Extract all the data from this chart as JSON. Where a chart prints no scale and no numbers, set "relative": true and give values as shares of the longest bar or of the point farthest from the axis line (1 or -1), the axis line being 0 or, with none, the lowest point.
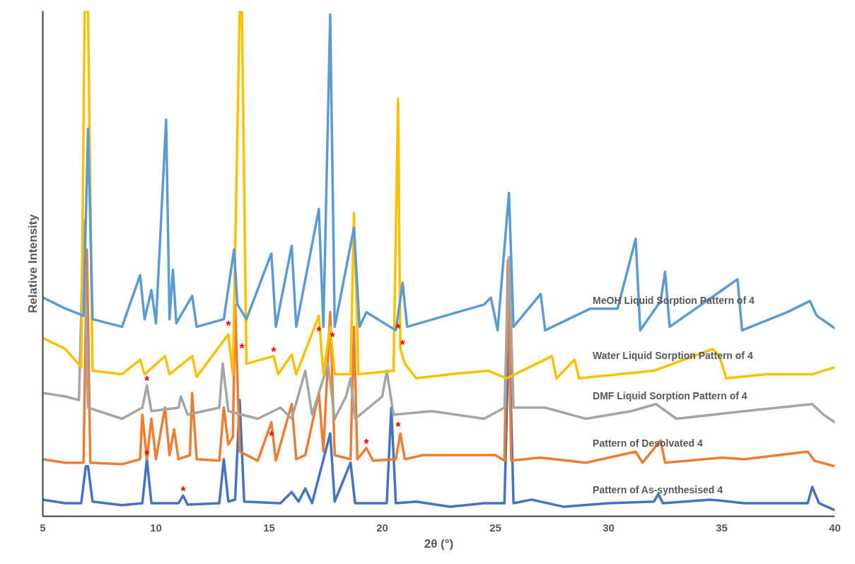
{
  "chart_data": {
    "type": "line",
    "relative": true,
    "xlabel": "2θ (°)",
    "ylabel": "Relative Intensity",
    "xlim": [
      5,
      40
    ],
    "xticks": [
      5,
      10,
      15,
      20,
      25,
      30,
      35,
      40
    ],
    "grid": false,
    "marker": "none",
    "line_style": "solid",
    "series": [
      {
        "name": "Pattern of As-synthesised 4",
        "color": "#4472c4",
        "x": [
          5.0,
          6.0,
          6.7,
          6.9,
          7.0,
          7.2,
          8.5,
          9.4,
          9.6,
          9.8,
          11.0,
          11.2,
          11.4,
          12.8,
          13.0,
          13.2,
          13.5,
          13.7,
          13.9,
          15.5,
          16.0,
          16.3,
          16.6,
          16.9,
          17.7,
          17.9,
          18.6,
          18.8,
          20.2,
          20.4,
          20.6,
          21.5,
          23,
          24.5,
          25.4,
          25.6,
          25.8,
          26.6,
          28,
          30,
          32.0,
          32.2,
          32.4,
          34.5,
          36,
          38.8,
          39.0,
          39.3,
          40
        ],
        "values": [
          0.033,
          0.026,
          0.026,
          0.099,
          0.099,
          0.029,
          0.022,
          0.026,
          0.113,
          0.026,
          0.026,
          0.041,
          0.023,
          0.026,
          0.113,
          0.029,
          0.033,
          0.23,
          0.029,
          0.026,
          0.048,
          0.029,
          0.055,
          0.026,
          0.164,
          0.029,
          0.106,
          0.026,
          0.026,
          0.215,
          0.026,
          0.029,
          0.019,
          0.026,
          0.026,
          0.375,
          0.026,
          0.033,
          0.019,
          0.026,
          0.029,
          0.044,
          0.026,
          0.033,
          0.026,
          0.026,
          0.058,
          0.026,
          0.012
        ]
      },
      {
        "name": "Pattern of Desolvated 4",
        "color": "#ed7d31",
        "x": [
          5.0,
          6.0,
          6.8,
          6.95,
          7.1,
          8.5,
          9.3,
          9.4,
          9.6,
          9.8,
          10.0,
          10.4,
          10.6,
          10.8,
          11.0,
          11.5,
          11.6,
          11.8,
          12.8,
          13.0,
          13.2,
          13.4,
          13.5,
          13.7,
          14.5,
          15.1,
          15.3,
          16.0,
          16.2,
          16.6,
          17.2,
          17.4,
          17.7,
          17.9,
          18.6,
          18.75,
          18.9,
          19.3,
          19.6,
          20.6,
          20.8,
          21.0,
          21.8,
          22.8,
          24.3,
          25.0,
          25.4,
          25.55,
          25.7,
          27.0,
          29.0,
          31.2,
          31.5,
          32.3,
          32.5,
          35,
          36,
          38.8,
          39.1,
          40
        ],
        "values": [
          0.113,
          0.106,
          0.106,
          0.528,
          0.106,
          0.103,
          0.113,
          0.201,
          0.113,
          0.193,
          0.113,
          0.215,
          0.121,
          0.172,
          0.113,
          0.121,
          0.244,
          0.113,
          0.11,
          0.215,
          0.142,
          0.157,
          0.419,
          0.128,
          0.11,
          0.186,
          0.11,
          0.222,
          0.113,
          0.121,
          0.244,
          0.128,
          0.404,
          0.121,
          0.113,
          0.375,
          0.113,
          0.135,
          0.11,
          0.113,
          0.164,
          0.113,
          0.121,
          0.121,
          0.121,
          0.121,
          0.11,
          0.506,
          0.11,
          0.116,
          0.106,
          0.128,
          0.106,
          0.15,
          0.106,
          0.116,
          0.113,
          0.128,
          0.11,
          0.099
        ]
      },
      {
        "name": "DMF Liquid Sorption Pattern of 4",
        "color": "#a5a5a5",
        "x": [
          5.0,
          6.0,
          6.6,
          6.8,
          7.0,
          8.5,
          9.4,
          9.6,
          9.8,
          11.0,
          11.1,
          11.4,
          12.8,
          12.95,
          13.2,
          14.5,
          15.5,
          16.0,
          16.6,
          16.9,
          17.6,
          17.9,
          18.4,
          18.6,
          18.8,
          20.0,
          20.2,
          20.5,
          22.2,
          24.5,
          25.4,
          25.6,
          25.8,
          27.2,
          29,
          31,
          32.1,
          33,
          36,
          39,
          39.5,
          40
        ],
        "values": [
          0.244,
          0.237,
          0.23,
          0.586,
          0.215,
          0.193,
          0.215,
          0.259,
          0.208,
          0.215,
          0.237,
          0.201,
          0.215,
          0.302,
          0.208,
          0.193,
          0.215,
          0.193,
          0.288,
          0.201,
          0.302,
          0.193,
          0.237,
          0.273,
          0.193,
          0.237,
          0.288,
          0.201,
          0.208,
          0.193,
          0.215,
          0.513,
          0.215,
          0.215,
          0.193,
          0.208,
          0.222,
          0.193,
          0.208,
          0.222,
          0.201,
          0.186
        ]
      },
      {
        "name": "Water Liquid Sorption Pattern of 4",
        "color": "#ffc000",
        "x": [
          5.0,
          6.0,
          6.7,
          6.85,
          7.0,
          7.2,
          8.5,
          9.3,
          9.5,
          10.4,
          10.6,
          11.6,
          11.8,
          13.2,
          13.4,
          13.7,
          13.8,
          14.0,
          15.2,
          15.4,
          16.0,
          16.2,
          17.2,
          17.4,
          17.7,
          17.9,
          18.6,
          18.75,
          18.95,
          20.5,
          20.7,
          20.8,
          21.0,
          21.5,
          23,
          24.7,
          25.5,
          27.5,
          27.7,
          28.5,
          28.7,
          32,
          34.6,
          34.9,
          35.2,
          37,
          39,
          40
        ],
        "values": [
          0.353,
          0.331,
          0.295,
          1.0,
          1.0,
          0.288,
          0.281,
          0.31,
          0.281,
          0.317,
          0.281,
          0.317,
          0.276,
          0.36,
          0.281,
          1.0,
          1.0,
          0.302,
          0.317,
          0.281,
          0.32,
          0.281,
          0.397,
          0.281,
          0.375,
          0.281,
          0.281,
          0.6,
          0.281,
          0.288,
          0.826,
          0.331,
          0.302,
          0.273,
          0.281,
          0.288,
          0.273,
          0.317,
          0.273,
          0.31,
          0.273,
          0.288,
          0.331,
          0.317,
          0.273,
          0.281,
          0.281,
          0.295
        ]
      },
      {
        "name": "MeOH Liquid Sorption Pattern of 4",
        "color": "#5b9bd5",
        "x": [
          5.0,
          6.0,
          6.8,
          7.0,
          7.2,
          8.5,
          9.3,
          9.5,
          9.8,
          10.0,
          10.45,
          10.6,
          10.75,
          10.9,
          11.6,
          11.8,
          13.0,
          13.45,
          13.6,
          14.0,
          15.1,
          15.3,
          16.0,
          16.2,
          17.2,
          17.4,
          17.7,
          17.9,
          18.75,
          19.0,
          19.3,
          20.6,
          20.9,
          21.1,
          22.8,
          24.5,
          24.8,
          25.1,
          25.6,
          25.8,
          27.0,
          27.2,
          29.2,
          30.4,
          31.2,
          31.4,
          32.3,
          32.5,
          32.7,
          35.7,
          35.9,
          37.9,
          38.9,
          39.2,
          40
        ],
        "values": [
          0.433,
          0.411,
          0.397,
          0.767,
          0.39,
          0.375,
          0.477,
          0.39,
          0.448,
          0.382,
          0.785,
          0.39,
          0.488,
          0.382,
          0.436,
          0.375,
          0.39,
          0.528,
          0.419,
          0.39,
          0.52,
          0.375,
          0.535,
          0.375,
          0.608,
          0.375,
          0.993,
          0.375,
          0.571,
          0.375,
          0.404,
          0.368,
          0.462,
          0.375,
          0.397,
          0.419,
          0.433,
          0.368,
          0.64,
          0.375,
          0.44,
          0.368,
          0.411,
          0.411,
          0.549,
          0.368,
          0.426,
          0.484,
          0.375,
          0.469,
          0.368,
          0.404,
          0.426,
          0.397,
          0.372
        ]
      }
    ],
    "annotations": [
      {
        "text": "*",
        "x": 9.6,
        "y": 0.259
      },
      {
        "text": "*",
        "x": 13.2,
        "y": 0.368
      },
      {
        "text": "*",
        "x": 13.8,
        "y": 0.324
      },
      {
        "text": "*",
        "x": 15.2,
        "y": 0.317
      },
      {
        "text": "*",
        "x": 17.2,
        "y": 0.358
      },
      {
        "text": "*",
        "x": 17.8,
        "y": 0.346
      },
      {
        "text": "*",
        "x": 20.7,
        "y": 0.363
      },
      {
        "text": "*",
        "x": 20.9,
        "y": 0.331
      },
      {
        "text": "*",
        "x": 15.1,
        "y": 0.15
      },
      {
        "text": "*",
        "x": 19.3,
        "y": 0.135
      },
      {
        "text": "*",
        "x": 20.7,
        "y": 0.169
      },
      {
        "text": "*",
        "x": 9.6,
        "y": 0.113
      },
      {
        "text": "*",
        "x": 11.2,
        "y": 0.041
      }
    ]
  }
}
